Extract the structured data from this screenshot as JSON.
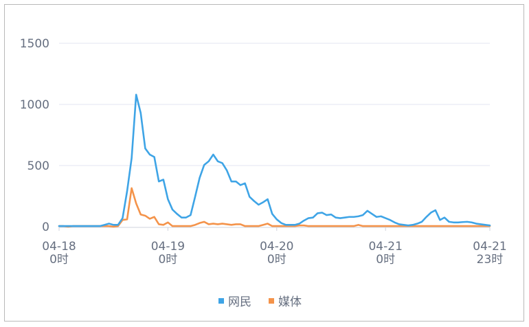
{
  "chart_data": {
    "type": "line",
    "title": "",
    "xlabel": "",
    "ylabel": "",
    "ylim": [
      0,
      1500
    ],
    "y_ticks": [
      0,
      500,
      1000,
      1500
    ],
    "grid": true,
    "legend_position": "bottom",
    "x_ticks": [
      {
        "hour": 0,
        "line1": "04-18",
        "line2": "0时"
      },
      {
        "hour": 24,
        "line1": "04-19",
        "line2": "0时"
      },
      {
        "hour": 48,
        "line1": "04-20",
        "line2": "0时"
      },
      {
        "hour": 72,
        "line1": "04-21",
        "line2": "0时"
      },
      {
        "hour": 95,
        "line1": "04-21",
        "line2": "23时"
      }
    ],
    "x": [
      0,
      1,
      2,
      3,
      4,
      5,
      6,
      7,
      8,
      9,
      10,
      11,
      12,
      13,
      14,
      15,
      16,
      17,
      18,
      19,
      20,
      21,
      22,
      23,
      24,
      25,
      26,
      27,
      28,
      29,
      30,
      31,
      32,
      33,
      34,
      35,
      36,
      37,
      38,
      39,
      40,
      41,
      42,
      43,
      44,
      45,
      46,
      47,
      48,
      49,
      50,
      51,
      52,
      53,
      54,
      55,
      56,
      57,
      58,
      59,
      60,
      61,
      62,
      63,
      64,
      65,
      66,
      67,
      68,
      69,
      70,
      71,
      72,
      73,
      74,
      75,
      76,
      77,
      78,
      79,
      80,
      81,
      82,
      83,
      84,
      85,
      86,
      87,
      88,
      89,
      90,
      91,
      92,
      93,
      94,
      95
    ],
    "series": [
      {
        "name": "网民",
        "color": "#3ea4e6",
        "values": [
          5,
          5,
          5,
          5,
          5,
          5,
          5,
          5,
          5,
          5,
          15,
          25,
          15,
          15,
          70,
          290,
          560,
          1080,
          930,
          640,
          590,
          570,
          370,
          385,
          225,
          140,
          105,
          75,
          75,
          95,
          245,
          400,
          505,
          535,
          590,
          535,
          520,
          460,
          370,
          370,
          340,
          355,
          245,
          210,
          180,
          200,
          225,
          105,
          60,
          30,
          15,
          15,
          15,
          25,
          50,
          70,
          75,
          110,
          115,
          95,
          100,
          75,
          70,
          75,
          80,
          80,
          85,
          95,
          130,
          105,
          80,
          85,
          70,
          55,
          35,
          20,
          15,
          10,
          15,
          25,
          40,
          80,
          115,
          135,
          55,
          75,
          40,
          35,
          35,
          38,
          40,
          35,
          25,
          20,
          15,
          10
        ]
      },
      {
        "name": "媒体",
        "color": "#f4934a",
        "values": [
          5,
          5,
          0,
          5,
          5,
          5,
          5,
          5,
          5,
          5,
          5,
          5,
          0,
          5,
          55,
          60,
          315,
          190,
          100,
          90,
          65,
          80,
          20,
          15,
          35,
          5,
          5,
          5,
          5,
          5,
          15,
          30,
          40,
          20,
          25,
          20,
          25,
          20,
          15,
          20,
          20,
          5,
          5,
          5,
          5,
          15,
          25,
          5,
          5,
          5,
          5,
          5,
          5,
          10,
          10,
          5,
          5,
          5,
          5,
          5,
          5,
          5,
          5,
          5,
          5,
          5,
          15,
          5,
          5,
          5,
          5,
          5,
          5,
          5,
          5,
          5,
          5,
          5,
          5,
          5,
          5,
          5,
          5,
          5,
          5,
          5,
          5,
          5,
          5,
          5,
          5,
          5,
          5,
          5,
          5,
          5
        ]
      }
    ]
  }
}
